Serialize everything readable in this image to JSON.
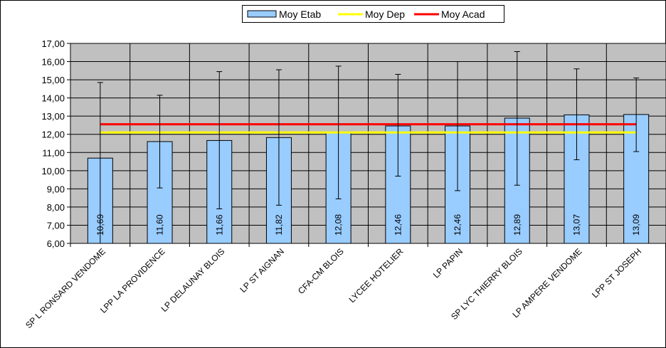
{
  "chart_data": {
    "type": "bar",
    "categories": [
      "SP L RONSARD VENDOME",
      "LPP LA PROVIDENCE",
      "LP DELAUNAY BLOIS",
      "LP ST AIGNAN",
      "CFA-CM BLOIS",
      "LYCEE HOTELIER",
      "LP PAPIN",
      "SP LYC THIERRY BLOIS",
      "LP AMPERE VENDOME",
      "LPP ST JOSEPH"
    ],
    "series": [
      {
        "name": "Moy Etab",
        "type": "bar",
        "values": [
          10.69,
          11.6,
          11.66,
          11.82,
          12.08,
          12.46,
          12.46,
          12.89,
          13.07,
          13.09
        ],
        "labels": [
          "10,69",
          "11,60",
          "11,66",
          "11,82",
          "12,08",
          "12,46",
          "12,46",
          "12,89",
          "13,07",
          "13,09"
        ],
        "error_low": [
          6.0,
          9.05,
          7.9,
          8.1,
          8.45,
          9.7,
          8.9,
          9.2,
          10.6,
          11.05
        ],
        "error_high": [
          14.85,
          14.15,
          15.45,
          15.55,
          15.75,
          15.3,
          16.0,
          16.55,
          15.6,
          15.1
        ],
        "color": "#99ccff"
      },
      {
        "name": "Moy Dep",
        "type": "line",
        "value": 12.1,
        "color": "#ffff00"
      },
      {
        "name": "Moy Acad",
        "type": "line",
        "value": 12.55,
        "color": "#ff0000"
      }
    ],
    "yticks": [
      "17,00",
      "16,00",
      "15,00",
      "14,00",
      "13,00",
      "12,00",
      "11,00",
      "10,00",
      "9,00",
      "8,00",
      "7,00",
      "6,00"
    ],
    "ylim": [
      6,
      17
    ],
    "grid": true,
    "legend": "top-center",
    "plot_background": "#c0c0c0"
  }
}
